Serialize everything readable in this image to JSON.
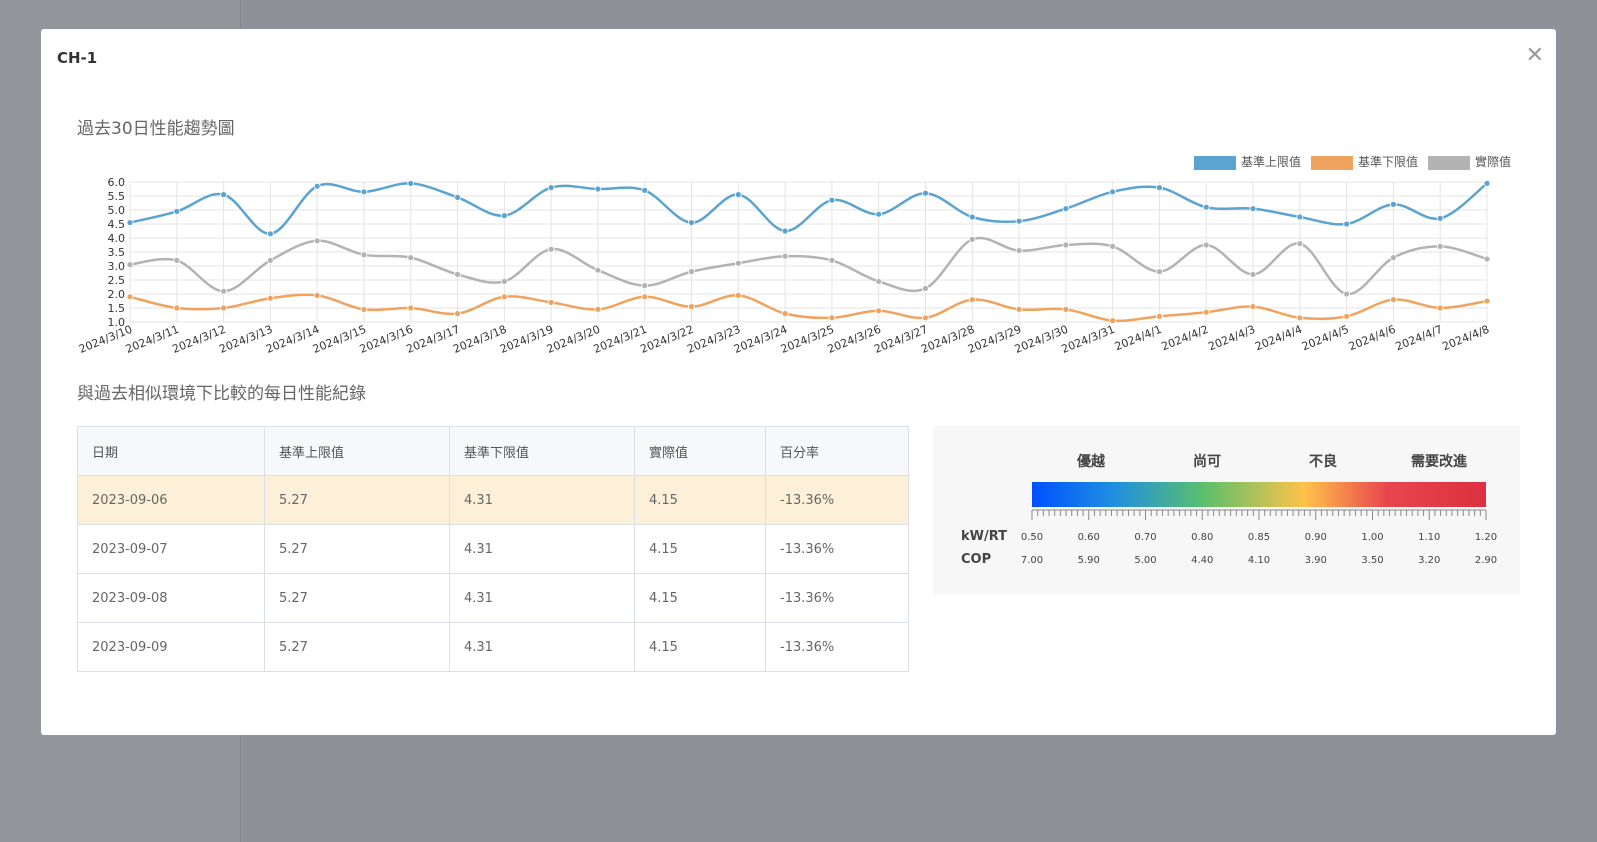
{
  "modal": {
    "title": "CH-1"
  },
  "chart_data": {
    "type": "line",
    "title": "過去30日性能趨勢圖",
    "categories": [
      "2024/3/10",
      "2024/3/11",
      "2024/3/12",
      "2024/3/13",
      "2024/3/14",
      "2024/3/15",
      "2024/3/16",
      "2024/3/17",
      "2024/3/18",
      "2024/3/19",
      "2024/3/20",
      "2024/3/21",
      "2024/3/22",
      "2024/3/23",
      "2024/3/24",
      "2024/3/25",
      "2024/3/26",
      "2024/3/27",
      "2024/3/28",
      "2024/3/29",
      "2024/3/30",
      "2024/3/31",
      "2024/4/1",
      "2024/4/2",
      "2024/4/3",
      "2024/4/4",
      "2024/4/5",
      "2024/4/6",
      "2024/4/7",
      "2024/4/8"
    ],
    "series": [
      {
        "name": "基準上限值",
        "color": "#5ba3d0",
        "values": [
          4.55,
          4.95,
          5.55,
          4.15,
          5.85,
          5.65,
          5.95,
          5.45,
          4.8,
          5.8,
          5.75,
          5.7,
          4.55,
          5.55,
          4.25,
          5.35,
          4.85,
          5.6,
          4.75,
          4.6,
          5.05,
          5.65,
          5.8,
          5.1,
          5.05,
          4.75,
          4.5,
          5.2,
          4.7,
          5.95
        ]
      },
      {
        "name": "基準下限值",
        "color": "#f0a35e",
        "values": [
          1.9,
          1.5,
          1.5,
          1.85,
          1.95,
          1.45,
          1.5,
          1.3,
          1.9,
          1.7,
          1.45,
          1.9,
          1.55,
          1.95,
          1.3,
          1.15,
          1.4,
          1.15,
          1.8,
          1.45,
          1.45,
          1.05,
          1.2,
          1.35,
          1.55,
          1.15,
          1.2,
          1.8,
          1.5,
          1.75
        ]
      },
      {
        "name": "實際值",
        "color": "#b3b3b3",
        "values": [
          3.05,
          3.2,
          2.1,
          3.2,
          3.9,
          3.4,
          3.3,
          2.7,
          2.45,
          3.6,
          2.85,
          2.3,
          2.8,
          3.1,
          3.35,
          3.2,
          2.45,
          2.2,
          3.95,
          3.55,
          3.75,
          3.7,
          2.8,
          3.75,
          2.7,
          3.8,
          2.0,
          3.3,
          3.7,
          3.25
        ]
      }
    ],
    "ylim": [
      1,
      6
    ],
    "yticks": [
      {
        "value": 1,
        "label": "1.0"
      },
      {
        "value": 1.5,
        "label": "1.5"
      },
      {
        "value": 2,
        "label": "2.0"
      },
      {
        "value": 2.5,
        "label": "2.5"
      },
      {
        "value": 3,
        "label": "3.0"
      },
      {
        "value": 3.5,
        "label": "3.5"
      },
      {
        "value": 4,
        "label": "4.0"
      },
      {
        "value": 4.5,
        "label": "4.5"
      },
      {
        "value": 5,
        "label": "5.0"
      },
      {
        "value": 5.5,
        "label": "5.5"
      },
      {
        "value": 6,
        "label": "6.0"
      }
    ],
    "grid": true,
    "legend": "top-right"
  },
  "records": {
    "title": "與過去相似環境下比較的每日性能紀錄",
    "table": {
      "header": [
        "日期",
        "基準上限值",
        "基準下限值",
        "實際值",
        "百分率"
      ],
      "rows": [
        [
          "2023-09-06",
          "5.27",
          "4.31",
          "4.15",
          "-13.36%"
        ],
        [
          "2023-09-07",
          "5.27",
          "4.31",
          "4.15",
          "-13.36%"
        ],
        [
          "2023-09-08",
          "5.27",
          "4.31",
          "4.15",
          "-13.36%"
        ],
        [
          "2023-09-09",
          "5.27",
          "4.31",
          "4.15",
          "-13.36%"
        ]
      ]
    }
  },
  "scale": {
    "levels": [
      "優越",
      "尚可",
      "不良",
      "需要改進"
    ],
    "rows": [
      {
        "label": "kW/RT",
        "values": [
          "0.50",
          "0.60",
          "0.70",
          "0.80",
          "0.85",
          "0.90",
          "1.00",
          "1.10",
          "1.20"
        ]
      },
      {
        "label": "COP",
        "values": [
          "7.00",
          "5.90",
          "5.00",
          "4.40",
          "4.10",
          "3.90",
          "3.50",
          "3.20",
          "2.90"
        ]
      }
    ]
  }
}
